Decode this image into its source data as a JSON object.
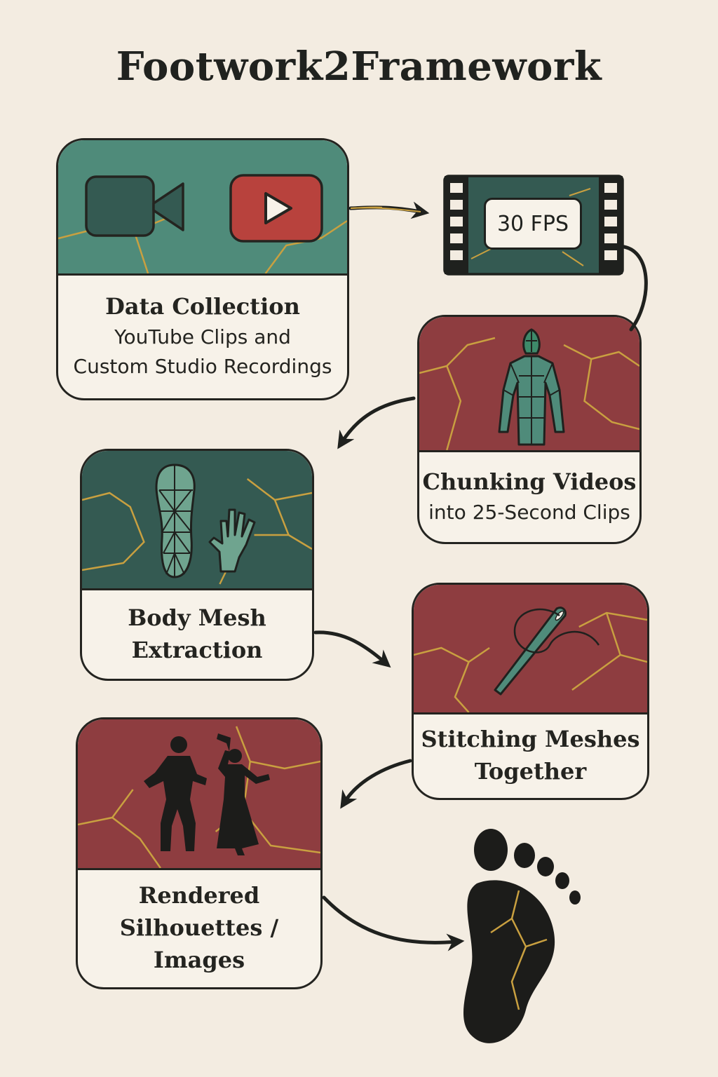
{
  "title": "Footwork2Framework",
  "steps": [
    {
      "title": "Data Collection",
      "subtitle": [
        "YouTube Clips and",
        "Custom Studio Recordings"
      ],
      "icons": [
        "video-camera-icon",
        "play-button-icon"
      ],
      "color": "#4f8b7a"
    },
    {
      "badge": "30 FPS",
      "icons": [
        "film-strip-icon"
      ],
      "color": "#345a52"
    },
    {
      "title": "Chunking Videos",
      "subtitle": [
        "into 25-Second Clips"
      ],
      "icons": [
        "mesh-body-icon"
      ],
      "color": "#8e3d40"
    },
    {
      "title_lines": [
        "Body Mesh",
        "Extraction"
      ],
      "icons": [
        "mesh-foot-icon",
        "mesh-hand-icon"
      ],
      "color": "#345a52"
    },
    {
      "title_lines": [
        "Stitching Meshes",
        "Together"
      ],
      "icons": [
        "needle-thread-icon"
      ],
      "color": "#8e3d40"
    },
    {
      "title_lines": [
        "Rendered",
        "Silhouettes /",
        "Images"
      ],
      "icons": [
        "dancer-silhouettes-icon"
      ],
      "color": "#8e3d40"
    },
    {
      "icons": [
        "footprint-icon"
      ]
    }
  ],
  "colors": {
    "background": "#f3ece1",
    "teal": "#4f8b7a",
    "dark_teal": "#345a52",
    "red": "#8e3d40",
    "gold": "#c9a040",
    "ink": "#242420"
  }
}
